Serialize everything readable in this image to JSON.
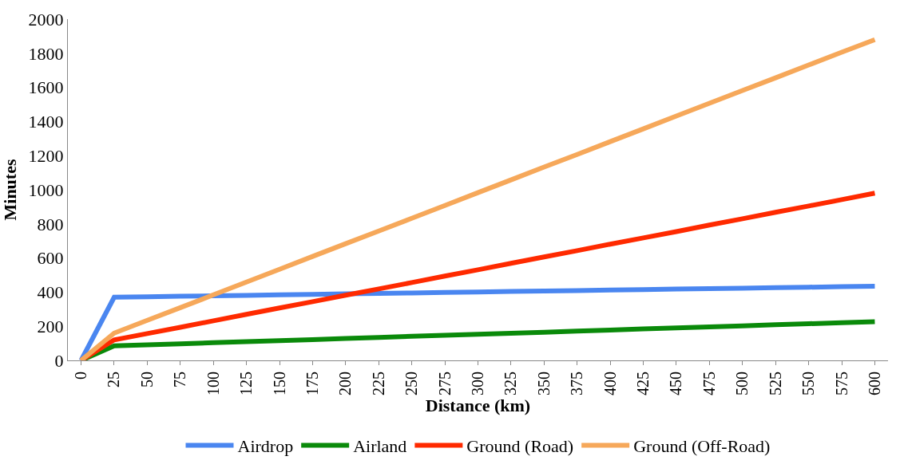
{
  "chart_data": {
    "type": "line",
    "xlabel": "Distance (km)",
    "ylabel": "Minutes",
    "categories": [
      "0",
      "25",
      "50",
      "75",
      "100",
      "125",
      "150",
      "175",
      "200",
      "225",
      "250",
      "275",
      "300",
      "325",
      "350",
      "375",
      "400",
      "425",
      "450",
      "475",
      "500",
      "525",
      "550",
      "575",
      "600"
    ],
    "series": [
      {
        "name": "Airdrop",
        "color": "#4a86f0",
        "values": [
          0,
          370,
          373,
          376,
          378,
          381,
          384,
          387,
          390,
          392,
          395,
          398,
          401,
          404,
          406,
          409,
          412,
          415,
          418,
          420,
          423,
          426,
          429,
          432,
          434
        ]
      },
      {
        "name": "Airland",
        "color": "#0a8a0a",
        "values": [
          0,
          85,
          91,
          97,
          104,
          110,
          116,
          122,
          128,
          134,
          141,
          147,
          153,
          159,
          165,
          172,
          178,
          184,
          190,
          196,
          202,
          209,
          215,
          221,
          227
        ]
      },
      {
        "name": "Ground (Road)",
        "color": "#ff2a00",
        "values": [
          0,
          120,
          157,
          194,
          232,
          270,
          307,
          344,
          382,
          419,
          456,
          494,
          531,
          569,
          606,
          643,
          681,
          718,
          755,
          793,
          830,
          868,
          905,
          942,
          980
        ]
      },
      {
        "name": "Ground (Off-Road)",
        "color": "#f6a85a",
        "values": [
          0,
          160,
          235,
          309,
          384,
          459,
          534,
          609,
          684,
          758,
          833,
          908,
          983,
          1058,
          1133,
          1207,
          1282,
          1357,
          1432,
          1507,
          1582,
          1656,
          1731,
          1806,
          1880
        ]
      }
    ],
    "ylim": [
      0,
      2000
    ],
    "yticks": [
      0,
      200,
      400,
      600,
      800,
      1000,
      1200,
      1400,
      1600,
      1800,
      2000
    ],
    "legend": "bottom",
    "marker": "none",
    "line_style": "solid"
  }
}
